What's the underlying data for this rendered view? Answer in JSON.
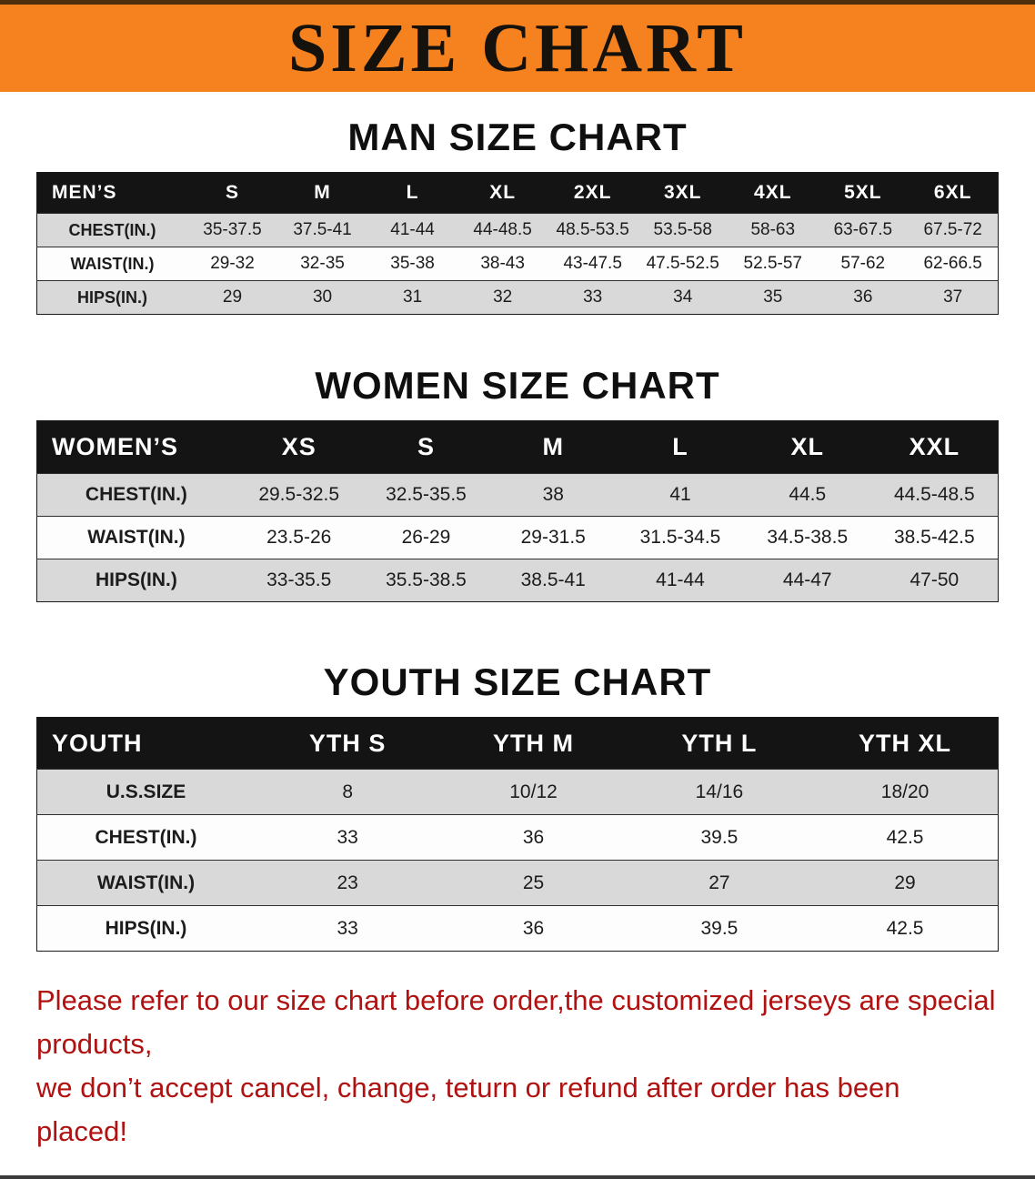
{
  "banner": {
    "title": "SIZE CHART",
    "bg_color": "#f5821f",
    "text_color": "#15110c"
  },
  "sections": [
    {
      "heading": "MAN SIZE CHART",
      "table": {
        "header": [
          "MEN’S",
          "S",
          "M",
          "L",
          "XL",
          "2XL",
          "3XL",
          "4XL",
          "5XL",
          "6XL"
        ],
        "rows": [
          [
            "CHEST(IN.)",
            "35-37.5",
            "37.5-41",
            "41-44",
            "44-48.5",
            "48.5-53.5",
            "53.5-58",
            "58-63",
            "63-67.5",
            "67.5-72"
          ],
          [
            "WAIST(IN.)",
            "29-32",
            "32-35",
            "35-38",
            "38-43",
            "43-47.5",
            "47.5-52.5",
            "52.5-57",
            "57-62",
            "62-66.5"
          ],
          [
            "HIPS(IN.)",
            "29",
            "30",
            "31",
            "32",
            "33",
            "34",
            "35",
            "36",
            "37"
          ]
        ]
      }
    },
    {
      "heading": "WOMEN SIZE CHART",
      "table": {
        "header": [
          "WOMEN’S",
          "XS",
          "S",
          "M",
          "L",
          "XL",
          "XXL"
        ],
        "rows": [
          [
            "CHEST(IN.)",
            "29.5-32.5",
            "32.5-35.5",
            "38",
            "41",
            "44.5",
            "44.5-48.5"
          ],
          [
            "WAIST(IN.)",
            "23.5-26",
            "26-29",
            "29-31.5",
            "31.5-34.5",
            "34.5-38.5",
            "38.5-42.5"
          ],
          [
            "HIPS(IN.)",
            "33-35.5",
            "35.5-38.5",
            "38.5-41",
            "41-44",
            "44-47",
            "47-50"
          ]
        ]
      }
    },
    {
      "heading": "YOUTH SIZE CHART",
      "table": {
        "header": [
          "YOUTH",
          "YTH S",
          "YTH M",
          "YTH L",
          "YTH XL"
        ],
        "rows": [
          [
            "U.S.SIZE",
            "8",
            "10/12",
            "14/16",
            "18/20"
          ],
          [
            "CHEST(IN.)",
            "33",
            "36",
            "39.5",
            "42.5"
          ],
          [
            "WAIST(IN.)",
            "23",
            "25",
            "27",
            "29"
          ],
          [
            "HIPS(IN.)",
            "33",
            "36",
            "39.5",
            "42.5"
          ]
        ]
      }
    }
  ],
  "disclaimer": {
    "line1": "Please refer to our size chart before order,the customized jerseys are special products,",
    "line2": "we don’t accept cancel, change, teturn or refund after order has been placed!",
    "color": "#b01111"
  }
}
